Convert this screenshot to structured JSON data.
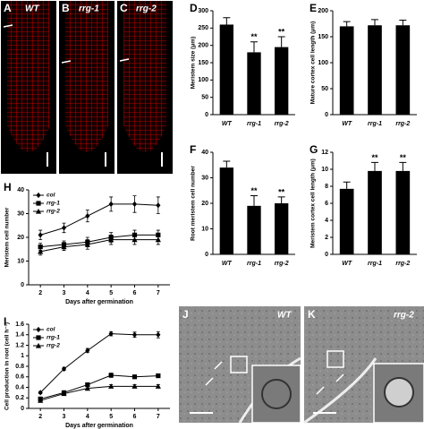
{
  "chart_data": [
    {
      "type": "bar",
      "panel": "D",
      "ylabel": "Meristem size (μm)",
      "categories": [
        "WT",
        "rrg-1",
        "rrg-2"
      ],
      "values": [
        260,
        180,
        195
      ],
      "errors": [
        20,
        30,
        30
      ],
      "color": "#000000",
      "ylim": [
        0,
        300
      ],
      "yticks": [
        0,
        50,
        100,
        150,
        200,
        250,
        300
      ],
      "annotations": [
        {
          "category": "rrg-1",
          "text": "**"
        },
        {
          "category": "rrg-2",
          "text": "**"
        }
      ]
    },
    {
      "type": "bar",
      "panel": "E",
      "ylabel": "Mature cortex cell length (μm)",
      "categories": [
        "WT",
        "rrg-1",
        "rrg-2"
      ],
      "values": [
        170,
        172,
        172
      ],
      "errors": [
        9,
        11,
        10
      ],
      "color": "#000000",
      "ylim": [
        0,
        200
      ],
      "yticks": [
        0,
        50,
        100,
        150,
        200
      ]
    },
    {
      "type": "bar",
      "panel": "F",
      "ylabel": "Root meristem cell number",
      "categories": [
        "WT",
        "rrg-1",
        "rrg-2"
      ],
      "values": [
        34,
        19,
        20
      ],
      "errors": [
        2.5,
        4,
        2.5
      ],
      "color": "#000000",
      "ylim": [
        0,
        40
      ],
      "yticks": [
        0,
        10,
        20,
        30,
        40
      ],
      "annotations": [
        {
          "category": "rrg-1",
          "text": "**"
        },
        {
          "category": "rrg-2",
          "text": "**"
        }
      ]
    },
    {
      "type": "bar",
      "panel": "G",
      "ylabel": "Meristem cortex cell length (μm)",
      "categories": [
        "WT",
        "rrg-1",
        "rrg-2"
      ],
      "values": [
        7.7,
        9.8,
        9.8
      ],
      "errors": [
        0.8,
        1,
        1
      ],
      "color": "#000000",
      "ylim": [
        0,
        12
      ],
      "yticks": [
        0,
        2,
        4,
        6,
        8,
        10,
        12
      ],
      "annotations": [
        {
          "category": "rrg-1",
          "text": "**"
        },
        {
          "category": "rrg-2",
          "text": "**"
        }
      ]
    },
    {
      "type": "line",
      "panel": "H",
      "ylabel": "Meristem cell number",
      "xlabel": "Days after germination",
      "x": [
        2,
        3,
        4,
        5,
        6,
        7
      ],
      "xlim": [
        1.5,
        7.5
      ],
      "xticks": [
        2,
        3,
        4,
        5,
        6,
        7
      ],
      "ylim": [
        0,
        40
      ],
      "yticks": [
        0,
        10,
        20,
        30,
        40
      ],
      "series": [
        {
          "name": "col",
          "marker": "diamond",
          "color": "#000000",
          "values": [
            21,
            24,
            29,
            34,
            34,
            33.5
          ],
          "errors": [
            2,
            2,
            2.5,
            3,
            3.5,
            3.5
          ]
        },
        {
          "name": "rrg-1",
          "marker": "square",
          "color": "#000000",
          "values": [
            16,
            17,
            18,
            20,
            21,
            21
          ],
          "errors": [
            1.5,
            1.5,
            2,
            2,
            2,
            2
          ]
        },
        {
          "name": "rrg-2",
          "marker": "triangle",
          "color": "#000000",
          "values": [
            14,
            16,
            17,
            19,
            19,
            19
          ],
          "errors": [
            1.5,
            1.5,
            2,
            2,
            2,
            2
          ]
        }
      ]
    },
    {
      "type": "line",
      "panel": "I",
      "ylabel": "Cell production in root (cell h⁻¹)",
      "xlabel": "Days after germination",
      "x": [
        2,
        3,
        4,
        5,
        6,
        7
      ],
      "xlim": [
        1.5,
        7.5
      ],
      "xticks": [
        2,
        3,
        4,
        5,
        6,
        7
      ],
      "ylim": [
        0,
        1.6
      ],
      "yticks": [
        0,
        0.2,
        0.4,
        0.6,
        0.8,
        1,
        1.2,
        1.4,
        1.6
      ],
      "series": [
        {
          "name": "col",
          "marker": "diamond",
          "color": "#000000",
          "values": [
            0.3,
            0.75,
            1.1,
            1.42,
            1.4,
            1.4
          ],
          "errors": [
            0.02,
            0.03,
            0.04,
            0.04,
            0.05,
            0.06
          ]
        },
        {
          "name": "rrg-1",
          "marker": "square",
          "color": "#000000",
          "values": [
            0.18,
            0.3,
            0.45,
            0.63,
            0.6,
            0.62
          ],
          "errors": [
            0.02,
            0.02,
            0.03,
            0.04,
            0.03,
            0.03
          ]
        },
        {
          "name": "rrg-2",
          "marker": "triangle",
          "color": "#000000",
          "values": [
            0.15,
            0.28,
            0.38,
            0.42,
            0.42,
            0.42
          ],
          "errors": [
            0.02,
            0.02,
            0.03,
            0.03,
            0.03,
            0.03
          ]
        }
      ]
    }
  ],
  "images": [
    {
      "panel": "A",
      "label": "WT"
    },
    {
      "panel": "B",
      "label": "rrg-1"
    },
    {
      "panel": "C",
      "label": "rrg-2"
    },
    {
      "panel": "J",
      "label": "WT"
    },
    {
      "panel": "K",
      "label": "rrg-2"
    }
  ]
}
